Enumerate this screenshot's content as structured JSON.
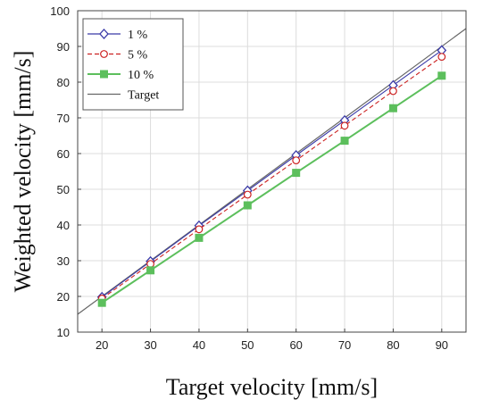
{
  "chart_data": {
    "type": "line",
    "title": "",
    "xlabel": "Target velocity [mm/s]",
    "ylabel": "Weighted velocity [mm/s]",
    "xlim": [
      15,
      95
    ],
    "ylim": [
      10,
      100
    ],
    "xticks": [
      20,
      30,
      40,
      50,
      60,
      70,
      80,
      90
    ],
    "yticks": [
      10,
      20,
      30,
      40,
      50,
      60,
      70,
      80,
      90,
      100
    ],
    "grid": true,
    "legend_position": "top-left",
    "series": [
      {
        "name": "1 %",
        "color": "#3a3aa8",
        "marker": "diamond",
        "line_style": "solid",
        "x": [
          20,
          30,
          40,
          50,
          60,
          70,
          80,
          90
        ],
        "y": [
          19.8,
          29.8,
          39.8,
          49.6,
          59.5,
          69.3,
          79.1,
          88.9
        ]
      },
      {
        "name": "5 %",
        "color": "#cc2222",
        "marker": "circle",
        "line_style": "dashed",
        "x": [
          20,
          30,
          40,
          50,
          60,
          70,
          80,
          90
        ],
        "y": [
          19.4,
          29.1,
          38.8,
          48.5,
          58.1,
          67.8,
          77.5,
          87.1
        ]
      },
      {
        "name": "10 %",
        "color": "#5cbf5c",
        "marker": "square",
        "line_style": "solid",
        "x": [
          20,
          30,
          40,
          50,
          60,
          70,
          80,
          90
        ],
        "y": [
          18.2,
          27.3,
          36.4,
          45.5,
          54.6,
          63.6,
          72.7,
          81.8
        ]
      },
      {
        "name": "Target",
        "color": "#666666",
        "marker": "none",
        "line_style": "solid",
        "x": [
          15,
          95
        ],
        "y": [
          15,
          95
        ]
      }
    ]
  }
}
